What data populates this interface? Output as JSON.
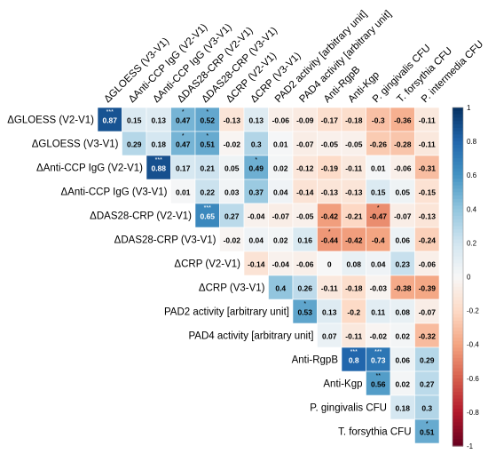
{
  "chart_data": {
    "type": "heatmap",
    "title": "",
    "variables": [
      "ΔGLOESS (V2-V1)",
      "ΔGLOESS (V3-V1)",
      "ΔAnti-CCP IgG (V2-V1)",
      "ΔAnti-CCP IgG (V3-V1)",
      "ΔDAS28-CRP (V2-V1)",
      "ΔDAS28-CRP (V3-V1)",
      "ΔCRP (V2-V1)",
      "ΔCRP (V3-V1)",
      "PAD2 activity [arbitrary unit]",
      "PAD4 activity [arbitrary unit]",
      "Anti-RgpB",
      "Anti-Kgp",
      "P. gingivalis CFU",
      "T. forsythia CFU",
      "P. intermedia CFU"
    ],
    "cells": [
      {
        "row": 0,
        "col": 1,
        "value": 0.87,
        "stars": "***"
      },
      {
        "row": 0,
        "col": 2,
        "value": 0.15,
        "stars": ""
      },
      {
        "row": 0,
        "col": 3,
        "value": 0.13,
        "stars": ""
      },
      {
        "row": 0,
        "col": 4,
        "value": 0.47,
        "stars": "*"
      },
      {
        "row": 0,
        "col": 5,
        "value": 0.52,
        "stars": "*"
      },
      {
        "row": 0,
        "col": 6,
        "value": -0.13,
        "stars": ""
      },
      {
        "row": 0,
        "col": 7,
        "value": 0.13,
        "stars": ""
      },
      {
        "row": 0,
        "col": 8,
        "value": -0.06,
        "stars": ""
      },
      {
        "row": 0,
        "col": 9,
        "value": -0.09,
        "stars": ""
      },
      {
        "row": 0,
        "col": 10,
        "value": -0.17,
        "stars": ""
      },
      {
        "row": 0,
        "col": 11,
        "value": -0.18,
        "stars": ""
      },
      {
        "row": 0,
        "col": 12,
        "value": -0.3,
        "stars": ""
      },
      {
        "row": 0,
        "col": 13,
        "value": -0.36,
        "stars": ""
      },
      {
        "row": 0,
        "col": 14,
        "value": -0.11,
        "stars": ""
      },
      {
        "row": 1,
        "col": 2,
        "value": 0.29,
        "stars": ""
      },
      {
        "row": 1,
        "col": 3,
        "value": 0.18,
        "stars": ""
      },
      {
        "row": 1,
        "col": 4,
        "value": 0.47,
        "stars": "*"
      },
      {
        "row": 1,
        "col": 5,
        "value": 0.51,
        "stars": "*"
      },
      {
        "row": 1,
        "col": 6,
        "value": -0.02,
        "stars": ""
      },
      {
        "row": 1,
        "col": 7,
        "value": 0.3,
        "stars": ""
      },
      {
        "row": 1,
        "col": 8,
        "value": 0.01,
        "stars": ""
      },
      {
        "row": 1,
        "col": 9,
        "value": -0.07,
        "stars": ""
      },
      {
        "row": 1,
        "col": 10,
        "value": -0.05,
        "stars": ""
      },
      {
        "row": 1,
        "col": 11,
        "value": -0.05,
        "stars": ""
      },
      {
        "row": 1,
        "col": 12,
        "value": -0.26,
        "stars": ""
      },
      {
        "row": 1,
        "col": 13,
        "value": -0.28,
        "stars": ""
      },
      {
        "row": 1,
        "col": 14,
        "value": -0.11,
        "stars": ""
      },
      {
        "row": 2,
        "col": 3,
        "value": 0.88,
        "stars": "***"
      },
      {
        "row": 2,
        "col": 4,
        "value": 0.17,
        "stars": ""
      },
      {
        "row": 2,
        "col": 5,
        "value": 0.21,
        "stars": ""
      },
      {
        "row": 2,
        "col": 6,
        "value": 0.05,
        "stars": ""
      },
      {
        "row": 2,
        "col": 7,
        "value": 0.49,
        "stars": "*"
      },
      {
        "row": 2,
        "col": 8,
        "value": 0.02,
        "stars": ""
      },
      {
        "row": 2,
        "col": 9,
        "value": -0.12,
        "stars": ""
      },
      {
        "row": 2,
        "col": 10,
        "value": -0.19,
        "stars": ""
      },
      {
        "row": 2,
        "col": 11,
        "value": -0.11,
        "stars": ""
      },
      {
        "row": 2,
        "col": 12,
        "value": 0.01,
        "stars": ""
      },
      {
        "row": 2,
        "col": 13,
        "value": -0.06,
        "stars": ""
      },
      {
        "row": 2,
        "col": 14,
        "value": -0.31,
        "stars": ""
      },
      {
        "row": 3,
        "col": 4,
        "value": 0.01,
        "stars": ""
      },
      {
        "row": 3,
        "col": 5,
        "value": 0.22,
        "stars": ""
      },
      {
        "row": 3,
        "col": 6,
        "value": 0.03,
        "stars": ""
      },
      {
        "row": 3,
        "col": 7,
        "value": 0.37,
        "stars": ""
      },
      {
        "row": 3,
        "col": 8,
        "value": 0.04,
        "stars": ""
      },
      {
        "row": 3,
        "col": 9,
        "value": -0.14,
        "stars": ""
      },
      {
        "row": 3,
        "col": 10,
        "value": -0.13,
        "stars": ""
      },
      {
        "row": 3,
        "col": 11,
        "value": -0.13,
        "stars": ""
      },
      {
        "row": 3,
        "col": 12,
        "value": 0.15,
        "stars": ""
      },
      {
        "row": 3,
        "col": 13,
        "value": 0.05,
        "stars": ""
      },
      {
        "row": 3,
        "col": 14,
        "value": -0.15,
        "stars": ""
      },
      {
        "row": 4,
        "col": 5,
        "value": 0.65,
        "stars": "***"
      },
      {
        "row": 4,
        "col": 6,
        "value": 0.27,
        "stars": ""
      },
      {
        "row": 4,
        "col": 7,
        "value": -0.04,
        "stars": ""
      },
      {
        "row": 4,
        "col": 8,
        "value": -0.07,
        "stars": ""
      },
      {
        "row": 4,
        "col": 9,
        "value": -0.05,
        "stars": ""
      },
      {
        "row": 4,
        "col": 10,
        "value": -0.42,
        "stars": ""
      },
      {
        "row": 4,
        "col": 11,
        "value": -0.21,
        "stars": ""
      },
      {
        "row": 4,
        "col": 12,
        "value": -0.47,
        "stars": "*"
      },
      {
        "row": 4,
        "col": 13,
        "value": -0.07,
        "stars": ""
      },
      {
        "row": 4,
        "col": 14,
        "value": -0.13,
        "stars": ""
      },
      {
        "row": 5,
        "col": 6,
        "value": -0.02,
        "stars": ""
      },
      {
        "row": 5,
        "col": 7,
        "value": 0.04,
        "stars": ""
      },
      {
        "row": 5,
        "col": 8,
        "value": 0.02,
        "stars": ""
      },
      {
        "row": 5,
        "col": 9,
        "value": 0.16,
        "stars": ""
      },
      {
        "row": 5,
        "col": 10,
        "value": -0.44,
        "stars": "*"
      },
      {
        "row": 5,
        "col": 11,
        "value": -0.42,
        "stars": ""
      },
      {
        "row": 5,
        "col": 12,
        "value": -0.4,
        "stars": ""
      },
      {
        "row": 5,
        "col": 13,
        "value": 0.06,
        "stars": ""
      },
      {
        "row": 5,
        "col": 14,
        "value": -0.24,
        "stars": ""
      },
      {
        "row": 6,
        "col": 7,
        "value": -0.14,
        "stars": ""
      },
      {
        "row": 6,
        "col": 8,
        "value": -0.04,
        "stars": ""
      },
      {
        "row": 6,
        "col": 9,
        "value": -0.06,
        "stars": ""
      },
      {
        "row": 6,
        "col": 10,
        "value": 0,
        "stars": ""
      },
      {
        "row": 6,
        "col": 11,
        "value": 0.08,
        "stars": ""
      },
      {
        "row": 6,
        "col": 12,
        "value": 0.04,
        "stars": ""
      },
      {
        "row": 6,
        "col": 13,
        "value": 0.23,
        "stars": ""
      },
      {
        "row": 6,
        "col": 14,
        "value": -0.06,
        "stars": ""
      },
      {
        "row": 7,
        "col": 8,
        "value": 0.4,
        "stars": ""
      },
      {
        "row": 7,
        "col": 9,
        "value": 0.26,
        "stars": ""
      },
      {
        "row": 7,
        "col": 10,
        "value": -0.11,
        "stars": ""
      },
      {
        "row": 7,
        "col": 11,
        "value": -0.18,
        "stars": ""
      },
      {
        "row": 7,
        "col": 12,
        "value": -0.03,
        "stars": ""
      },
      {
        "row": 7,
        "col": 13,
        "value": -0.38,
        "stars": ""
      },
      {
        "row": 7,
        "col": 14,
        "value": -0.39,
        "stars": ""
      },
      {
        "row": 8,
        "col": 9,
        "value": 0.53,
        "stars": "*"
      },
      {
        "row": 8,
        "col": 10,
        "value": 0.13,
        "stars": ""
      },
      {
        "row": 8,
        "col": 11,
        "value": -0.2,
        "stars": ""
      },
      {
        "row": 8,
        "col": 12,
        "value": 0.11,
        "stars": ""
      },
      {
        "row": 8,
        "col": 13,
        "value": 0.08,
        "stars": ""
      },
      {
        "row": 8,
        "col": 14,
        "value": -0.07,
        "stars": ""
      },
      {
        "row": 9,
        "col": 10,
        "value": 0.07,
        "stars": ""
      },
      {
        "row": 9,
        "col": 11,
        "value": -0.11,
        "stars": ""
      },
      {
        "row": 9,
        "col": 12,
        "value": -0.02,
        "stars": ""
      },
      {
        "row": 9,
        "col": 13,
        "value": 0.02,
        "stars": ""
      },
      {
        "row": 9,
        "col": 14,
        "value": -0.32,
        "stars": ""
      },
      {
        "row": 10,
        "col": 11,
        "value": 0.8,
        "stars": "***"
      },
      {
        "row": 10,
        "col": 12,
        "value": 0.73,
        "stars": "***"
      },
      {
        "row": 10,
        "col": 13,
        "value": 0.06,
        "stars": ""
      },
      {
        "row": 10,
        "col": 14,
        "value": 0.29,
        "stars": ""
      },
      {
        "row": 11,
        "col": 12,
        "value": 0.56,
        "stars": "**"
      },
      {
        "row": 11,
        "col": 13,
        "value": 0.02,
        "stars": ""
      },
      {
        "row": 11,
        "col": 14,
        "value": 0.27,
        "stars": ""
      },
      {
        "row": 12,
        "col": 13,
        "value": 0.18,
        "stars": ""
      },
      {
        "row": 12,
        "col": 14,
        "value": 0.3,
        "stars": ""
      },
      {
        "row": 13,
        "col": 14,
        "value": 0.51,
        "stars": "*"
      }
    ],
    "colorbar": {
      "range": [
        -1,
        1
      ],
      "ticks": [
        "1",
        "0.8",
        "0.6",
        "0.4",
        "0.2",
        "0",
        "-0.2",
        "-0.4",
        "-0.6",
        "-0.8",
        "-1"
      ],
      "low_color": "#67001f",
      "mid_color": "#f7f7f7",
      "high_color": "#053061"
    },
    "legend_position": "right",
    "grid": false
  }
}
